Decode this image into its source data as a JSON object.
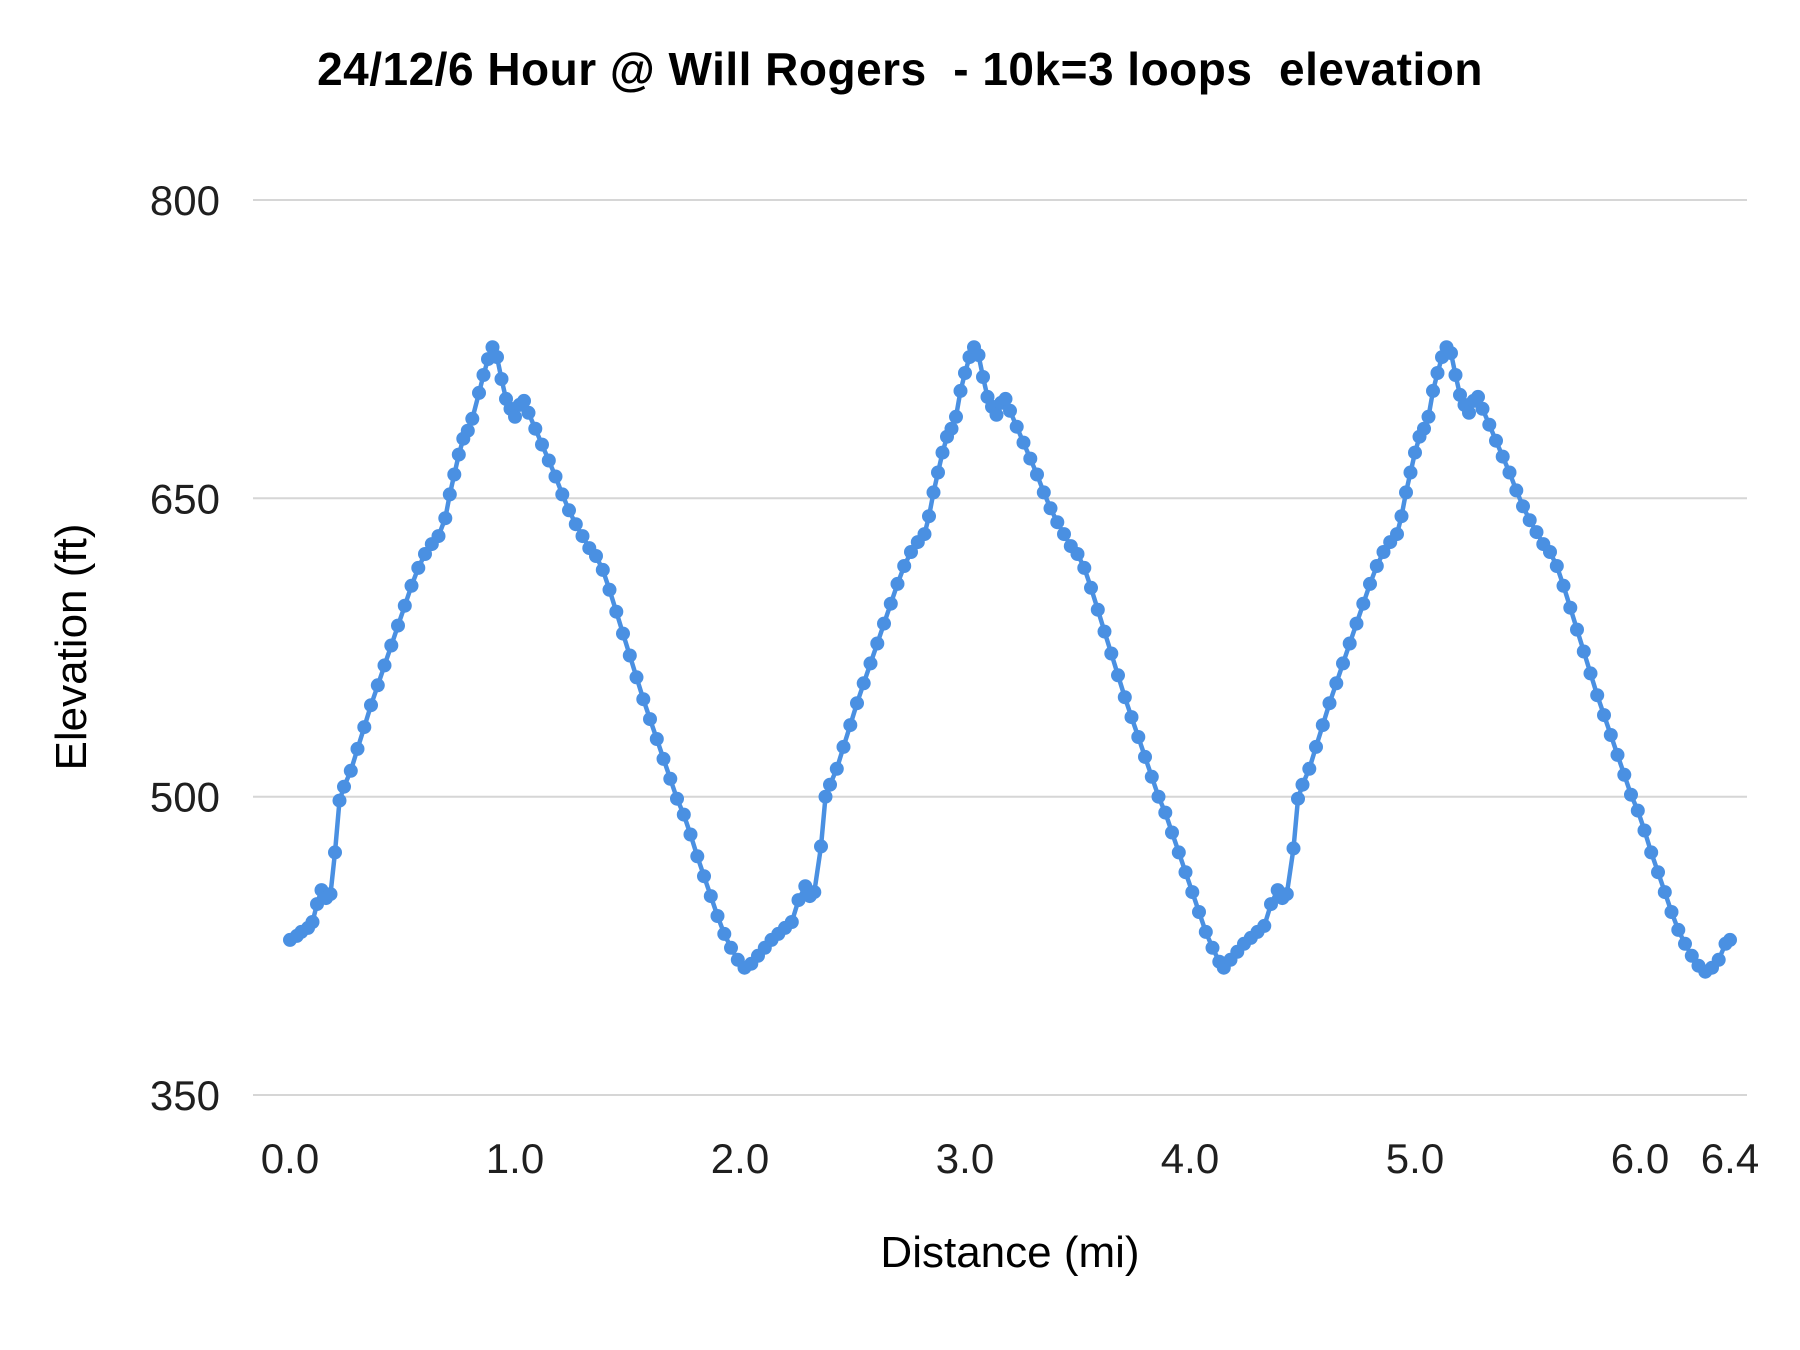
{
  "chart_data": {
    "type": "line",
    "title": "24/12/6 Hour @ Will Rogers  - 10k=3 loops  elevation",
    "xlabel": "Distance (mi)",
    "ylabel": "Elevation (ft)",
    "xlim": [
      0,
      6.4
    ],
    "ylim": [
      350,
      800
    ],
    "grid": "horizontal",
    "legend": "none",
    "marker": "circle",
    "x_ticks": [
      0,
      1,
      2,
      3,
      4,
      5,
      6,
      6.4
    ],
    "x_tick_labels": [
      "0.0",
      "1.0",
      "2.0",
      "3.0",
      "4.0",
      "5.0",
      "6.0",
      "6.4"
    ],
    "y_ticks": [
      350,
      500,
      650,
      800
    ],
    "y_tick_labels": [
      "350",
      "500",
      "650",
      "800"
    ],
    "series": [
      {
        "name": "elevation",
        "color": "#4a90e2",
        "points": [
          [
            0.0,
            428
          ],
          [
            0.03,
            430
          ],
          [
            0.05,
            432
          ],
          [
            0.08,
            434
          ],
          [
            0.1,
            437
          ],
          [
            0.12,
            446
          ],
          [
            0.14,
            453
          ],
          [
            0.16,
            449
          ],
          [
            0.18,
            451
          ],
          [
            0.2,
            472
          ],
          [
            0.22,
            498
          ],
          [
            0.24,
            505
          ],
          [
            0.27,
            513
          ],
          [
            0.3,
            524
          ],
          [
            0.33,
            535
          ],
          [
            0.36,
            546
          ],
          [
            0.39,
            556
          ],
          [
            0.42,
            566
          ],
          [
            0.45,
            576
          ],
          [
            0.48,
            586
          ],
          [
            0.51,
            596
          ],
          [
            0.54,
            606
          ],
          [
            0.57,
            615
          ],
          [
            0.6,
            622
          ],
          [
            0.63,
            627
          ],
          [
            0.66,
            631
          ],
          [
            0.69,
            640
          ],
          [
            0.71,
            652
          ],
          [
            0.73,
            662
          ],
          [
            0.75,
            672
          ],
          [
            0.77,
            680
          ],
          [
            0.79,
            684
          ],
          [
            0.81,
            690
          ],
          [
            0.84,
            703
          ],
          [
            0.86,
            712
          ],
          [
            0.88,
            720
          ],
          [
            0.9,
            726
          ],
          [
            0.92,
            721
          ],
          [
            0.94,
            710
          ],
          [
            0.96,
            700
          ],
          [
            0.98,
            695
          ],
          [
            1.0,
            691
          ],
          [
            1.02,
            697
          ],
          [
            1.04,
            699
          ],
          [
            1.06,
            693
          ],
          [
            1.09,
            685
          ],
          [
            1.12,
            677
          ],
          [
            1.15,
            669
          ],
          [
            1.18,
            661
          ],
          [
            1.21,
            652
          ],
          [
            1.24,
            644
          ],
          [
            1.27,
            637
          ],
          [
            1.3,
            631
          ],
          [
            1.33,
            625
          ],
          [
            1.36,
            621
          ],
          [
            1.39,
            614
          ],
          [
            1.42,
            604
          ],
          [
            1.45,
            593
          ],
          [
            1.48,
            582
          ],
          [
            1.51,
            571
          ],
          [
            1.54,
            560
          ],
          [
            1.57,
            549
          ],
          [
            1.6,
            539
          ],
          [
            1.63,
            529
          ],
          [
            1.66,
            519
          ],
          [
            1.69,
            509
          ],
          [
            1.72,
            499
          ],
          [
            1.75,
            491
          ],
          [
            1.78,
            481
          ],
          [
            1.81,
            470
          ],
          [
            1.84,
            460
          ],
          [
            1.87,
            450
          ],
          [
            1.9,
            440
          ],
          [
            1.93,
            431
          ],
          [
            1.96,
            424
          ],
          [
            1.99,
            418
          ],
          [
            2.02,
            414
          ],
          [
            2.05,
            416
          ],
          [
            2.08,
            420
          ],
          [
            2.11,
            424
          ],
          [
            2.14,
            428
          ],
          [
            2.17,
            431
          ],
          [
            2.2,
            434
          ],
          [
            2.23,
            437
          ],
          [
            2.26,
            448
          ],
          [
            2.29,
            455
          ],
          [
            2.31,
            450
          ],
          [
            2.33,
            452
          ],
          [
            2.36,
            475
          ],
          [
            2.38,
            500
          ],
          [
            2.4,
            506
          ],
          [
            2.43,
            514
          ],
          [
            2.46,
            525
          ],
          [
            2.49,
            536
          ],
          [
            2.52,
            547
          ],
          [
            2.55,
            557
          ],
          [
            2.58,
            567
          ],
          [
            2.61,
            577
          ],
          [
            2.64,
            587
          ],
          [
            2.67,
            597
          ],
          [
            2.7,
            607
          ],
          [
            2.73,
            616
          ],
          [
            2.76,
            623
          ],
          [
            2.79,
            628
          ],
          [
            2.82,
            632
          ],
          [
            2.84,
            641
          ],
          [
            2.86,
            653
          ],
          [
            2.88,
            663
          ],
          [
            2.9,
            673
          ],
          [
            2.92,
            681
          ],
          [
            2.94,
            685
          ],
          [
            2.96,
            691
          ],
          [
            2.98,
            704
          ],
          [
            3.0,
            713
          ],
          [
            3.02,
            721
          ],
          [
            3.04,
            726
          ],
          [
            3.06,
            722
          ],
          [
            3.08,
            711
          ],
          [
            3.1,
            701
          ],
          [
            3.12,
            696
          ],
          [
            3.14,
            692
          ],
          [
            3.16,
            698
          ],
          [
            3.18,
            700
          ],
          [
            3.2,
            694
          ],
          [
            3.23,
            686
          ],
          [
            3.26,
            678
          ],
          [
            3.29,
            670
          ],
          [
            3.32,
            662
          ],
          [
            3.35,
            653
          ],
          [
            3.38,
            645
          ],
          [
            3.41,
            638
          ],
          [
            3.44,
            632
          ],
          [
            3.47,
            626
          ],
          [
            3.5,
            622
          ],
          [
            3.53,
            615
          ],
          [
            3.56,
            605
          ],
          [
            3.59,
            594
          ],
          [
            3.62,
            583
          ],
          [
            3.65,
            572
          ],
          [
            3.68,
            561
          ],
          [
            3.71,
            550
          ],
          [
            3.74,
            540
          ],
          [
            3.77,
            530
          ],
          [
            3.8,
            520
          ],
          [
            3.83,
            510
          ],
          [
            3.86,
            500
          ],
          [
            3.89,
            492
          ],
          [
            3.92,
            482
          ],
          [
            3.95,
            472
          ],
          [
            3.98,
            462
          ],
          [
            4.01,
            452
          ],
          [
            4.04,
            442
          ],
          [
            4.07,
            432
          ],
          [
            4.1,
            424
          ],
          [
            4.13,
            417
          ],
          [
            4.15,
            414
          ],
          [
            4.18,
            418
          ],
          [
            4.21,
            422
          ],
          [
            4.24,
            426
          ],
          [
            4.27,
            429
          ],
          [
            4.3,
            432
          ],
          [
            4.33,
            435
          ],
          [
            4.36,
            446
          ],
          [
            4.39,
            453
          ],
          [
            4.41,
            449
          ],
          [
            4.43,
            451
          ],
          [
            4.46,
            474
          ],
          [
            4.48,
            499
          ],
          [
            4.5,
            506
          ],
          [
            4.53,
            514
          ],
          [
            4.56,
            525
          ],
          [
            4.59,
            536
          ],
          [
            4.62,
            547
          ],
          [
            4.65,
            557
          ],
          [
            4.68,
            567
          ],
          [
            4.71,
            577
          ],
          [
            4.74,
            587
          ],
          [
            4.77,
            597
          ],
          [
            4.8,
            607
          ],
          [
            4.83,
            616
          ],
          [
            4.86,
            623
          ],
          [
            4.89,
            628
          ],
          [
            4.92,
            632
          ],
          [
            4.94,
            641
          ],
          [
            4.96,
            653
          ],
          [
            4.98,
            663
          ],
          [
            5.0,
            673
          ],
          [
            5.02,
            681
          ],
          [
            5.04,
            685
          ],
          [
            5.06,
            691
          ],
          [
            5.08,
            704
          ],
          [
            5.1,
            713
          ],
          [
            5.12,
            721
          ],
          [
            5.14,
            726
          ],
          [
            5.16,
            723
          ],
          [
            5.18,
            712
          ],
          [
            5.2,
            702
          ],
          [
            5.22,
            697
          ],
          [
            5.24,
            693
          ],
          [
            5.26,
            699
          ],
          [
            5.28,
            701
          ],
          [
            5.3,
            695
          ],
          [
            5.33,
            687
          ],
          [
            5.36,
            679
          ],
          [
            5.39,
            671
          ],
          [
            5.42,
            663
          ],
          [
            5.45,
            654
          ],
          [
            5.48,
            646
          ],
          [
            5.51,
            639
          ],
          [
            5.54,
            633
          ],
          [
            5.57,
            627
          ],
          [
            5.6,
            623
          ],
          [
            5.63,
            616
          ],
          [
            5.66,
            606
          ],
          [
            5.69,
            595
          ],
          [
            5.72,
            584
          ],
          [
            5.75,
            573
          ],
          [
            5.78,
            562
          ],
          [
            5.81,
            551
          ],
          [
            5.84,
            541
          ],
          [
            5.87,
            531
          ],
          [
            5.9,
            521
          ],
          [
            5.93,
            511
          ],
          [
            5.96,
            501
          ],
          [
            5.99,
            493
          ],
          [
            6.02,
            483
          ],
          [
            6.05,
            472
          ],
          [
            6.08,
            462
          ],
          [
            6.11,
            452
          ],
          [
            6.14,
            442
          ],
          [
            6.17,
            433
          ],
          [
            6.2,
            426
          ],
          [
            6.23,
            420
          ],
          [
            6.26,
            415
          ],
          [
            6.29,
            412
          ],
          [
            6.32,
            414
          ],
          [
            6.35,
            418
          ],
          [
            6.38,
            426
          ],
          [
            6.4,
            428
          ]
        ]
      }
    ]
  }
}
